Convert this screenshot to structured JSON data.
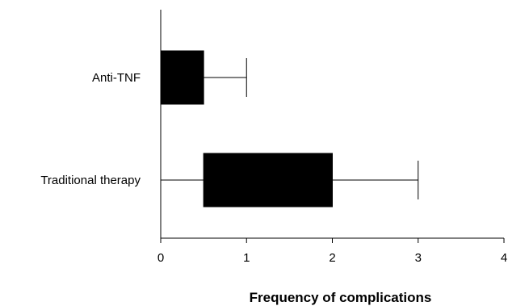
{
  "chart_data": {
    "type": "boxplot",
    "orientation": "horizontal",
    "categories": [
      "Anti-TNF",
      "Traditional therapy"
    ],
    "boxes": [
      {
        "category": "Anti-TNF",
        "whisker_low": 0,
        "q1": 0,
        "median": 0,
        "q3": 0.5,
        "whisker_high": 1
      },
      {
        "category": "Traditional therapy",
        "whisker_low": 0,
        "q1": 0.5,
        "median": 1,
        "q3": 2,
        "whisker_high": 3
      }
    ],
    "xlabel": "Frequency of complications",
    "ylabel": "",
    "xlim": [
      0,
      4
    ],
    "xticks": [
      "0",
      "1",
      "2",
      "3",
      "4"
    ],
    "grid": false,
    "colors": {
      "box_fill": "#000000",
      "line": "#000000"
    }
  }
}
